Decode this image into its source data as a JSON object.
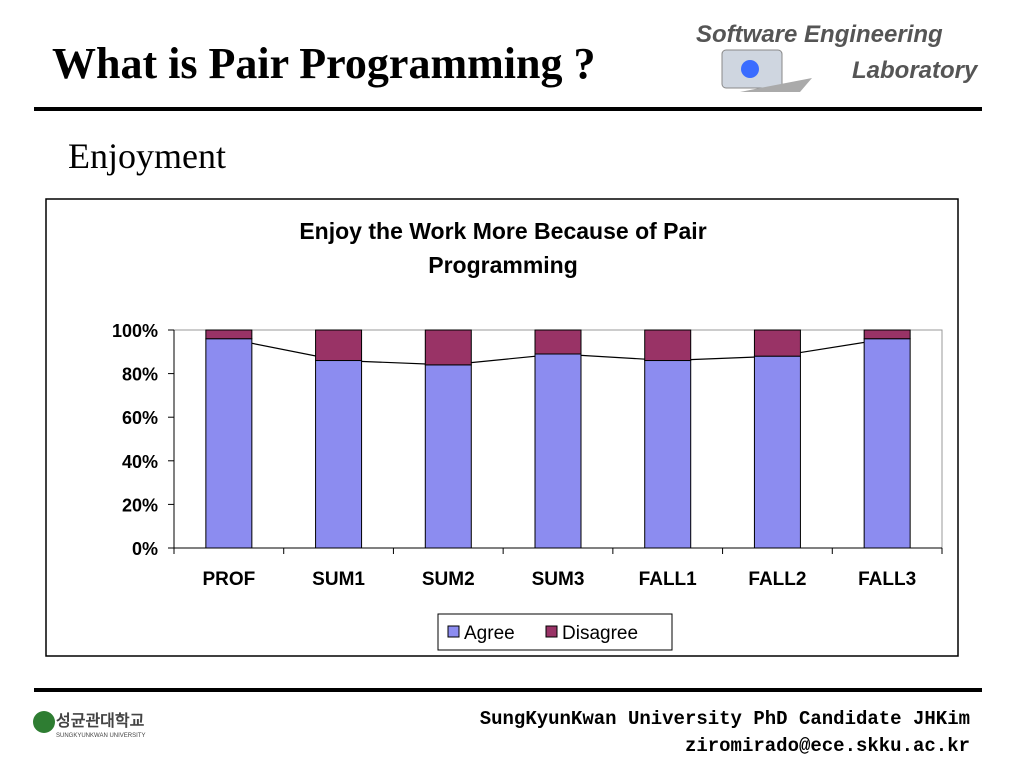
{
  "slide": {
    "title": "What is Pair Programming ?",
    "subtitle": "Enjoyment",
    "logo": {
      "line1": "Software Engineering",
      "line2": "Laboratory"
    },
    "university_logo": {
      "korean": "성균관대학교",
      "english": "SUNGKYUNKWAN UNIVERSITY"
    },
    "footer": {
      "line1": "SungKyunKwan University PhD Candidate JHKim",
      "line2": "ziromirado@ece.skku.ac.kr"
    }
  },
  "chart_data": {
    "type": "stacked_bar",
    "title": "Enjoy the Work More Because of Pair Programming",
    "categories": [
      "PROF",
      "SUM1",
      "SUM2",
      "SUM3",
      "FALL1",
      "FALL2",
      "FALL3"
    ],
    "series": [
      {
        "name": "Agree",
        "color": "#8c8cf0",
        "values": [
          96,
          86,
          84,
          89,
          86,
          88,
          96
        ]
      },
      {
        "name": "Disagree",
        "color": "#993366",
        "values": [
          4,
          14,
          16,
          11,
          14,
          12,
          4
        ]
      }
    ],
    "ylim": [
      0,
      100
    ],
    "yticks": [
      {
        "value": 0,
        "label": "0%"
      },
      {
        "value": 20,
        "label": "20%"
      },
      {
        "value": 40,
        "label": "40%"
      },
      {
        "value": 60,
        "label": "60%"
      },
      {
        "value": 80,
        "label": "80%"
      },
      {
        "value": 100,
        "label": "100%"
      }
    ],
    "legend": "bottom"
  }
}
